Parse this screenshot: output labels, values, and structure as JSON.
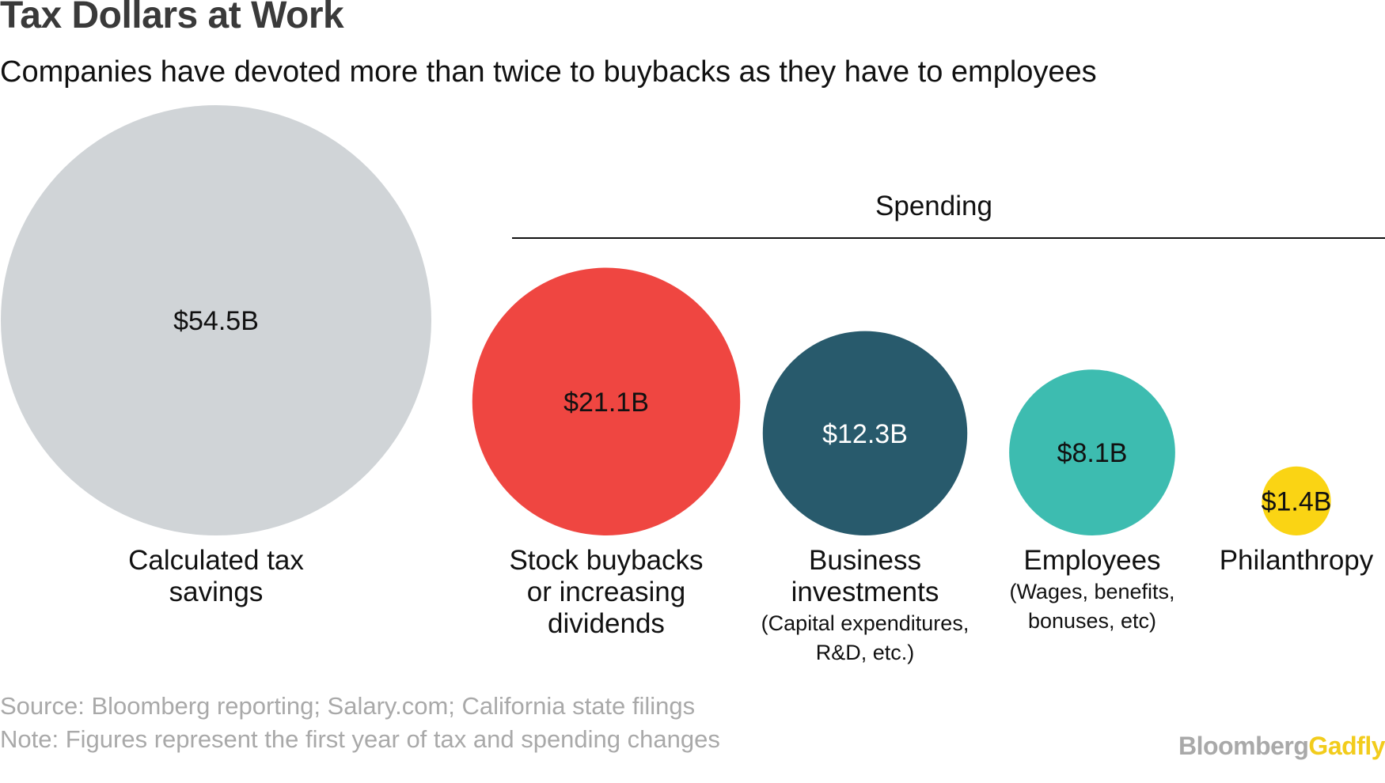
{
  "header": {
    "title": "Tax Dollars at Work",
    "subtitle": "Companies have devoted more than twice to buybacks as they have to employees"
  },
  "chart_data": {
    "type": "bubble",
    "title": "Tax Dollars at Work",
    "subtitle": "Companies have devoted more than twice to buybacks as they have to employees",
    "unit": "billions USD",
    "group_label": "Spending",
    "bubbles": [
      {
        "label": [
          "Calculated tax",
          "savings"
        ],
        "sublabel": [],
        "value": 54.5,
        "value_label": "$54.5B",
        "color": "#d0d4d7",
        "text_color": "#111111",
        "group": ""
      },
      {
        "label": [
          "Stock buybacks",
          "or increasing",
          "dividends"
        ],
        "sublabel": [],
        "value": 21.1,
        "value_label": "$21.1B",
        "color": "#ef4641",
        "text_color": "#111111",
        "group": "Spending"
      },
      {
        "label": [
          "Business",
          "investments"
        ],
        "sublabel": [
          "(Capital expenditures,",
          "R&D, etc.)"
        ],
        "value": 12.3,
        "value_label": "$12.3B",
        "color": "#285a6c",
        "text_color": "#ffffff",
        "group": "Spending"
      },
      {
        "label": [
          "Employees"
        ],
        "sublabel": [
          "(Wages, benefits,",
          "bonuses, etc)"
        ],
        "value": 8.1,
        "value_label": "$8.1B",
        "color": "#3dbcb0",
        "text_color": "#111111",
        "group": "Spending"
      },
      {
        "label": [
          "Philanthropy"
        ],
        "sublabel": [],
        "value": 1.4,
        "value_label": "$1.4B",
        "color": "#fad414",
        "text_color": "#111111",
        "group": "Spending"
      }
    ]
  },
  "footer": {
    "source": "Source: Bloomberg reporting; Salary.com; California state filings",
    "note": "Note: Figures represent the first year of tax and spending changes",
    "logo_part1": "Bloomberg",
    "logo_part2": "Gadfly"
  }
}
